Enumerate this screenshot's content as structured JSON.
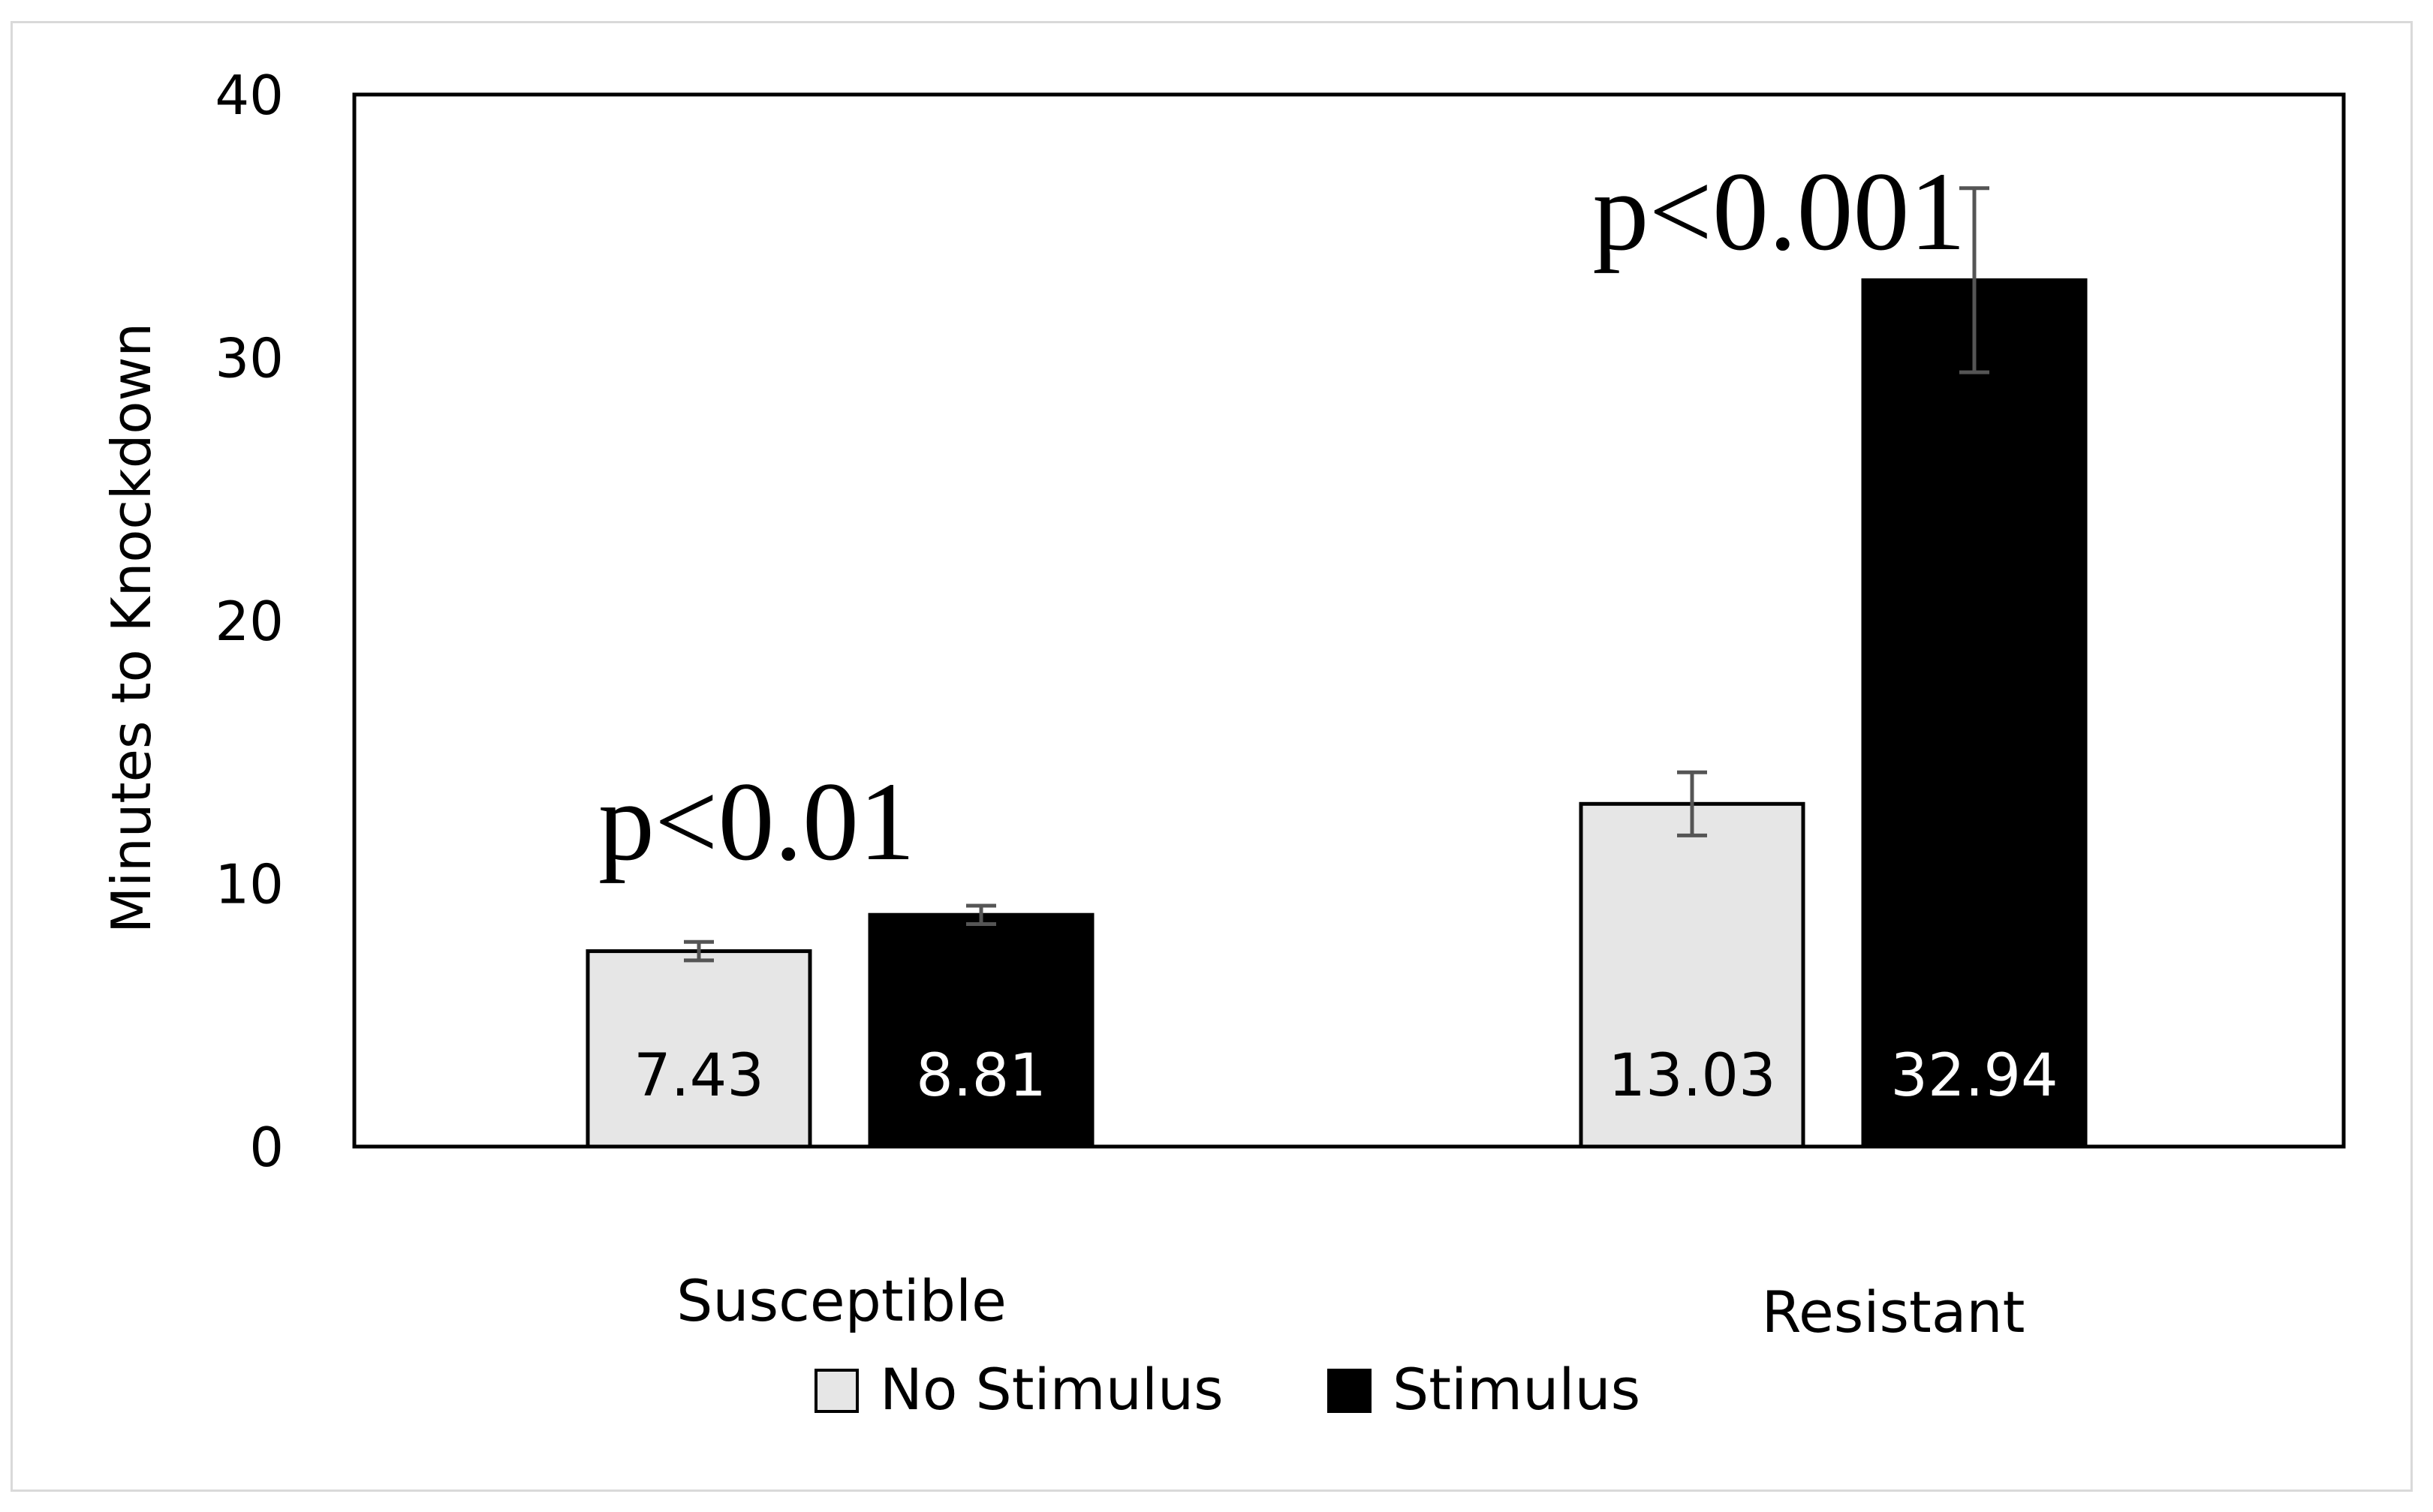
{
  "chart_data": {
    "type": "bar",
    "categories": [
      "Susceptible",
      "Resistant"
    ],
    "ylabel": "Minutes to Knockdown",
    "ylim": [
      0,
      40
    ],
    "yticks": [
      0,
      10,
      20,
      30,
      40
    ],
    "series": [
      {
        "name": "No Stimulus",
        "color": "#e6e6e6",
        "values": [
          7.43,
          13.03
        ],
        "errors": [
          0.35,
          1.2
        ],
        "labels": [
          "7.43",
          "13.03"
        ]
      },
      {
        "name": "Stimulus",
        "color": "#000000",
        "values": [
          8.81,
          32.94
        ],
        "errors": [
          0.35,
          3.5
        ],
        "labels": [
          "8.81",
          "32.94"
        ]
      }
    ],
    "annotations": [
      {
        "text": "p<0.01",
        "category": "Susceptible"
      },
      {
        "text": "p<0.001",
        "category": "Resistant"
      }
    ],
    "legend_position": "bottom",
    "grid": false
  }
}
